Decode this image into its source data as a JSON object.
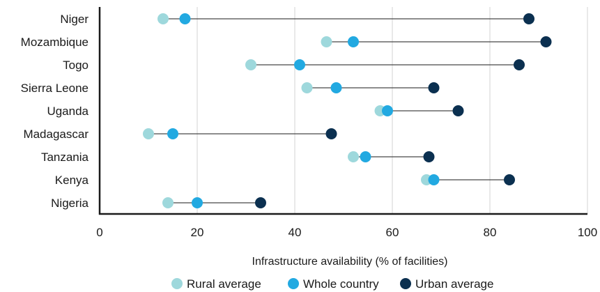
{
  "chart_data": {
    "type": "scatter",
    "subtype": "dumbbell",
    "title": "",
    "xlabel": "Infrastructure availability (% of facilities)",
    "ylabel": "",
    "xlim": [
      0,
      100
    ],
    "xticks": [
      0,
      20,
      40,
      60,
      80,
      100
    ],
    "grid": "vertical",
    "legend_position": "bottom-center",
    "categories": [
      "Niger",
      "Mozambique",
      "Togo",
      "Sierra Leone",
      "Uganda",
      "Madagascar",
      "Tanzania",
      "Kenya",
      "Nigeria"
    ],
    "series": [
      {
        "name": "Rural average",
        "color": "#9ed8dc",
        "values": [
          13,
          46.5,
          31,
          42.5,
          57.5,
          10,
          52,
          67,
          14
        ]
      },
      {
        "name": "Whole country",
        "color": "#22a9e1",
        "values": [
          17.5,
          52,
          41,
          48.5,
          59,
          15,
          54.5,
          68.5,
          20
        ]
      },
      {
        "name": "Urban average",
        "color": "#0b3050",
        "values": [
          88,
          91.5,
          86,
          68.5,
          73.5,
          47.5,
          67.5,
          84,
          33
        ]
      }
    ]
  }
}
